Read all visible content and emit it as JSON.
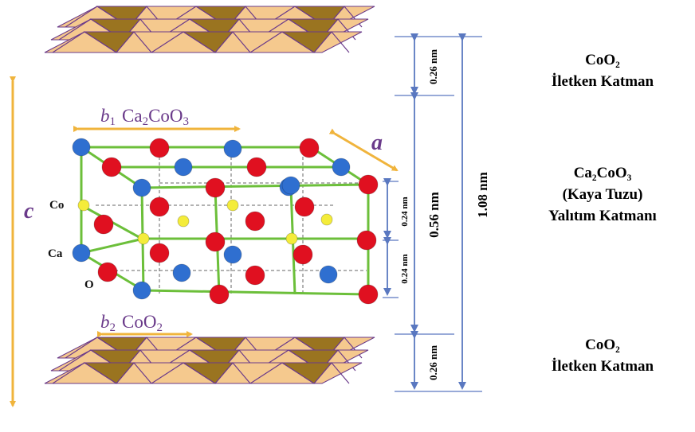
{
  "diagram": {
    "axis_labels": {
      "a": "a",
      "c": "c",
      "b1": "b",
      "b1_sub": "1",
      "b1_formula": "Ca2CoO3",
      "b2": "b",
      "b2_sub": "2",
      "b2_formula": "CoO2"
    },
    "atom_labels": {
      "co": "Co",
      "ca": "Ca",
      "o": "O"
    },
    "dimensions": {
      "top_layer": "0.26 nm",
      "middle_layer": "0.56 nm",
      "bottom_layer": "0.26 nm",
      "total": "1.08 nm",
      "sub_upper": "0.24 nm",
      "sub_lower": "0.24 nm"
    },
    "layers": {
      "top": {
        "line1": "CoO₂",
        "line2": "İletken Katman"
      },
      "middle": {
        "line1": "Ca₂CoO₃",
        "line2": "(Kaya Tuzu)",
        "line3": "Yalıtım Katmanı"
      },
      "bottom": {
        "line1": "CoO₂",
        "line2": "İletken Katman"
      }
    },
    "colors": {
      "arrow_orange": "#f0b43c",
      "dim_blue": "#5a78c0",
      "bond_green": "#6cbf3a",
      "atom_ca": "#2f6fd0",
      "atom_o": "#e01020",
      "atom_co": "#f4ec3a",
      "oct_face": "#f5c98e",
      "oct_dark": "#9a7420",
      "oct_edge": "#6a3a8a",
      "label_purple": "#6a3a8a"
    }
  }
}
